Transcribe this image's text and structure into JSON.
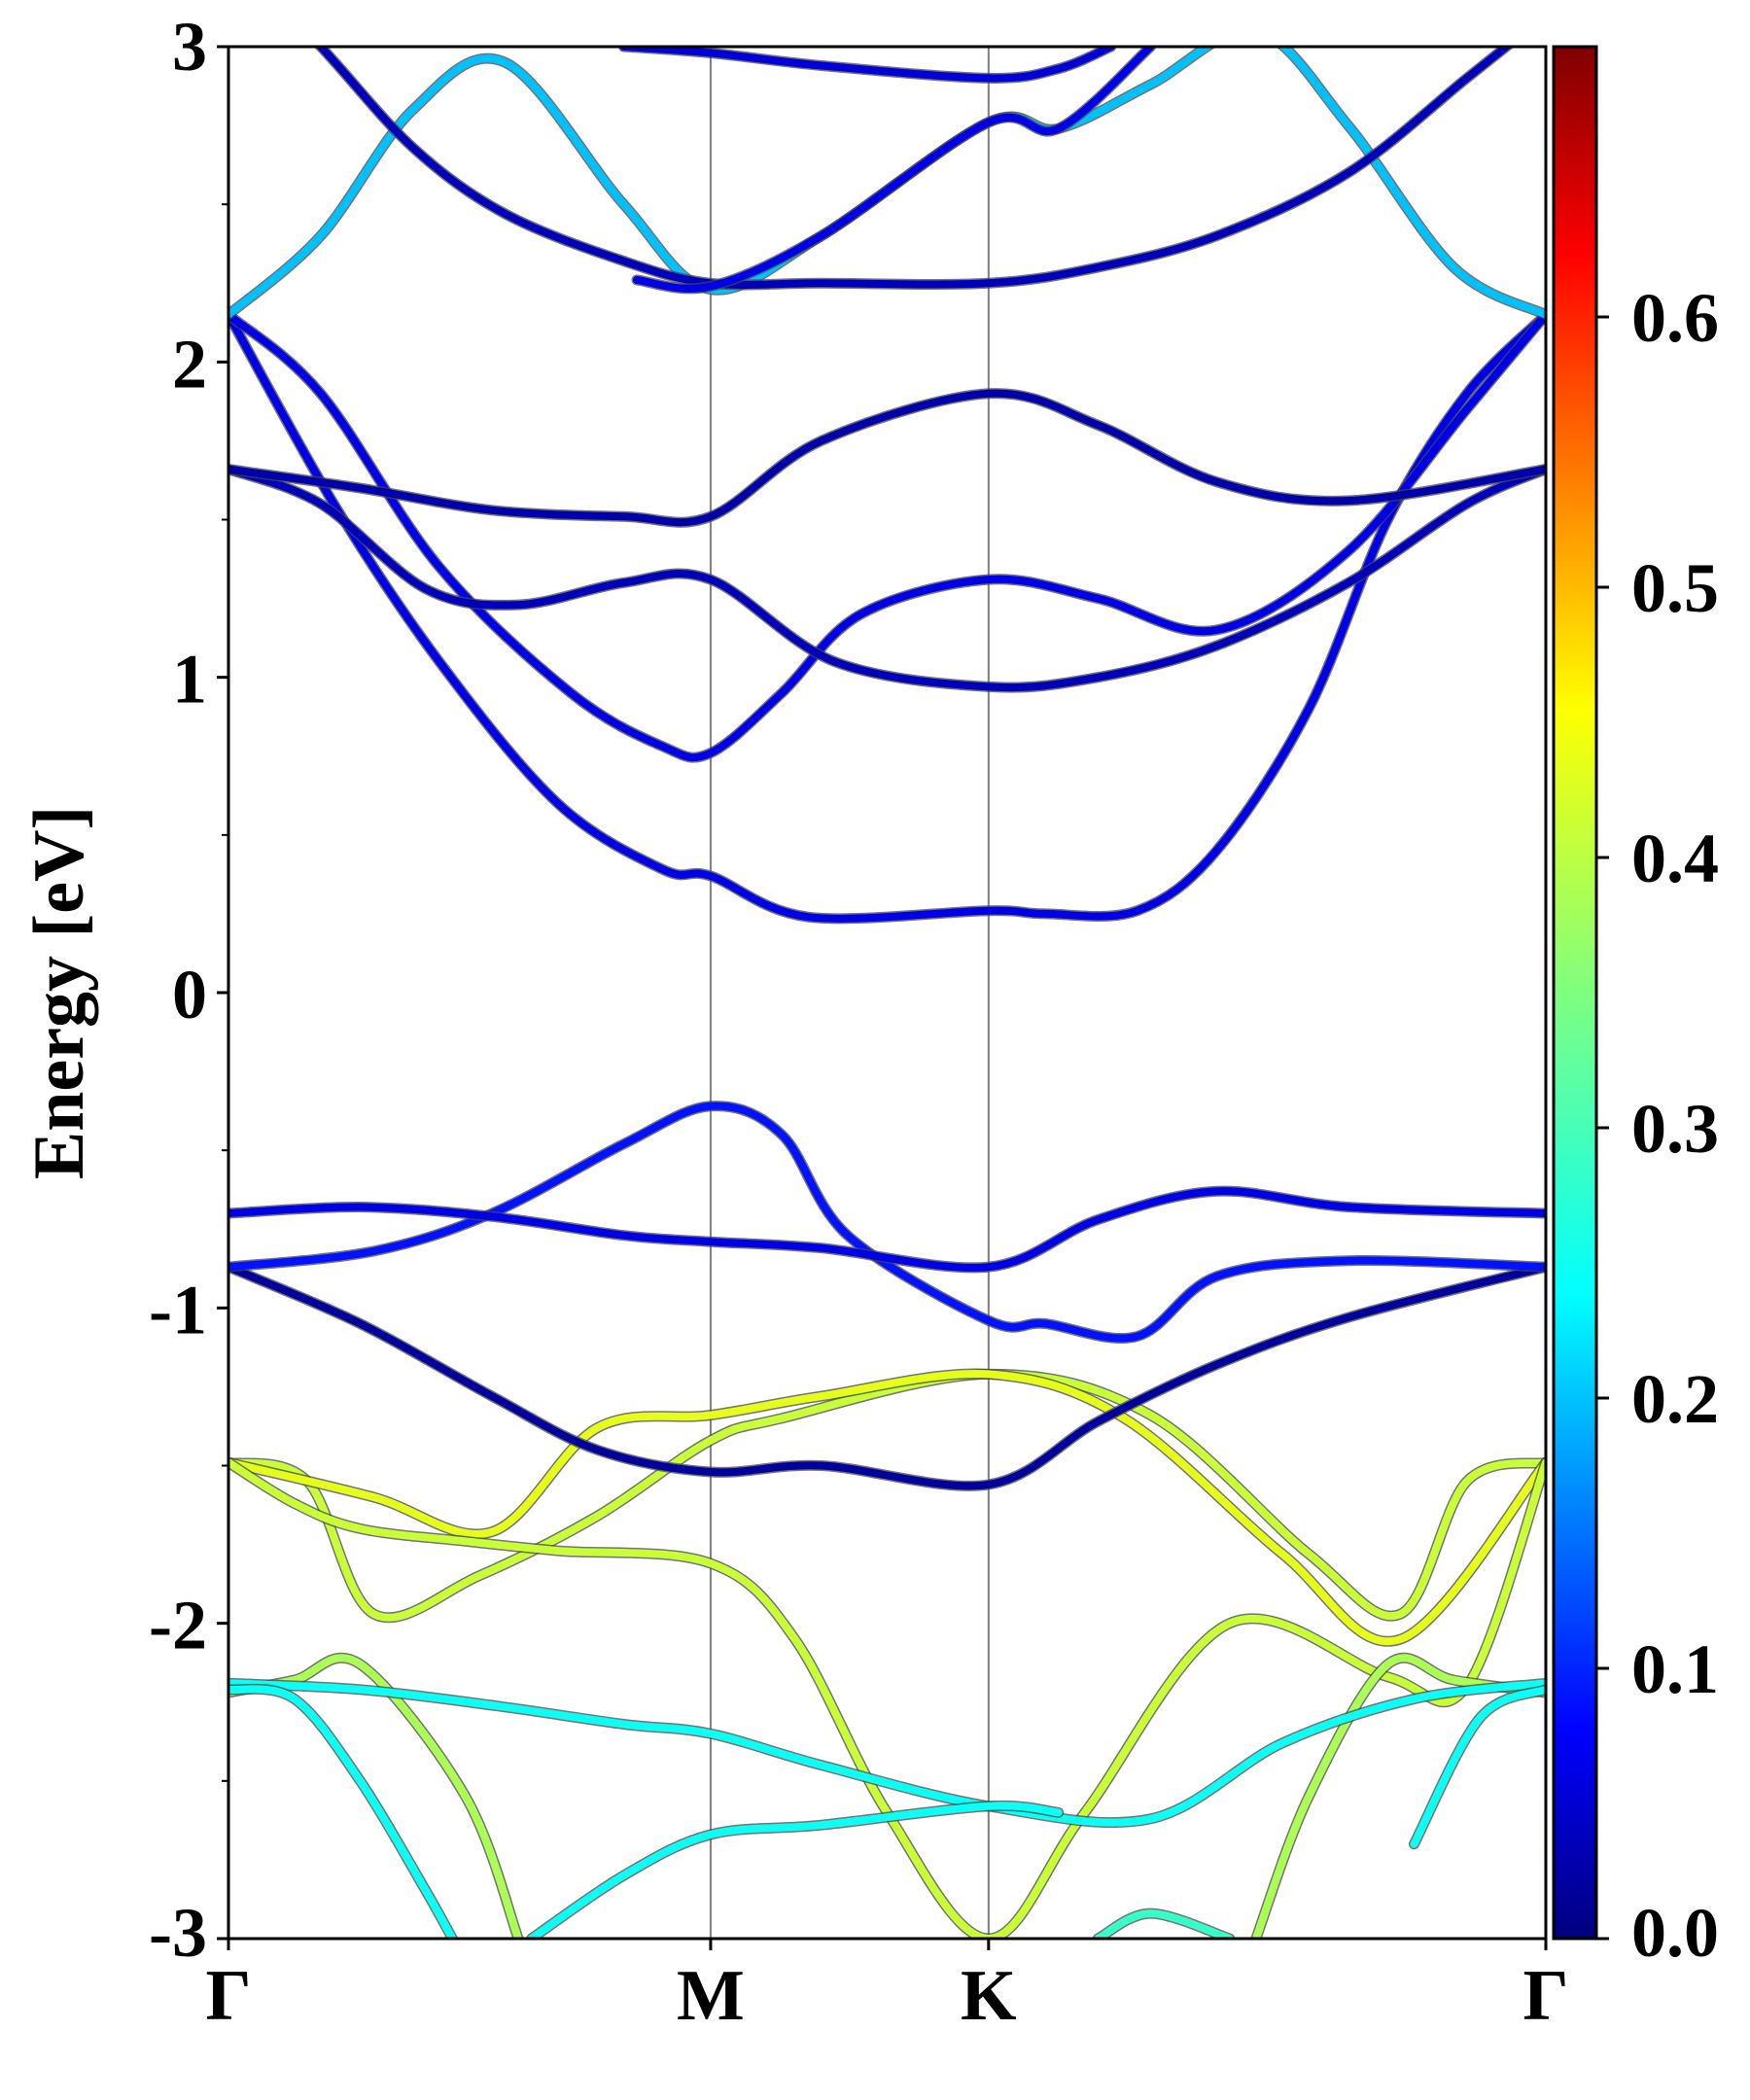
{
  "chart_data": {
    "type": "line",
    "subtype": "band-structure",
    "title": "",
    "ylabel": "Energy [eV]",
    "xlabel": "",
    "ylim": [
      -3,
      3
    ],
    "xlim": [
      0,
      1
    ],
    "y_ticks": [
      {
        "value": 3,
        "label": "3"
      },
      {
        "value": 2,
        "label": "2"
      },
      {
        "value": 1,
        "label": "1"
      },
      {
        "value": 0,
        "label": "0"
      },
      {
        "value": -1,
        "label": "-1"
      },
      {
        "value": -2,
        "label": "-2"
      },
      {
        "value": -3,
        "label": "-3"
      }
    ],
    "y_minor_ticks": [
      2.5,
      1.5,
      0.5,
      -0.5,
      -1.5,
      -2.5
    ],
    "high_symmetry_points": [
      {
        "label": "Γ",
        "x": 0.0
      },
      {
        "label": "M",
        "x": 0.366
      },
      {
        "label": "K",
        "x": 0.577
      },
      {
        "label": "Γ",
        "x": 1.0
      }
    ],
    "colorbar": {
      "colormap": "jet",
      "range": [
        0.0,
        0.7
      ],
      "ticks": [
        {
          "value": 0.0,
          "label": "0.0"
        },
        {
          "value": 0.1,
          "label": "0.1"
        },
        {
          "value": 0.2,
          "label": "0.2"
        },
        {
          "value": 0.3,
          "label": "0.3"
        },
        {
          "value": 0.4,
          "label": "0.4"
        },
        {
          "value": 0.5,
          "label": "0.5"
        },
        {
          "value": 0.6,
          "label": "0.6"
        }
      ]
    },
    "series": [
      {
        "name": "band-1",
        "weight": 0.4,
        "x": [
          0,
          0.06,
          0.11,
          0.19,
          0.28,
          0.366,
          0.42,
          0.577,
          0.7,
          0.82,
          0.89,
          0.94,
          1.0
        ],
        "y": [
          -1.49,
          -1.55,
          -1.97,
          -1.85,
          -1.66,
          -1.42,
          -1.35,
          -1.21,
          -1.34,
          -1.78,
          -1.97,
          -1.55,
          -1.49
        ]
      },
      {
        "name": "band-2",
        "weight": 0.42,
        "x": [
          0,
          0.11,
          0.2,
          0.28,
          0.366,
          0.45,
          0.577,
          0.68,
          0.8,
          0.89,
          1.0
        ],
        "y": [
          -1.49,
          -1.6,
          -1.71,
          -1.38,
          -1.34,
          -1.28,
          -1.21,
          -1.35,
          -1.78,
          -2.05,
          -1.49
        ]
      },
      {
        "name": "band-3",
        "weight": 0.4,
        "x": [
          0,
          0.05,
          0.1,
          0.18,
          0.25,
          0.366,
          0.43,
          0.5,
          0.577,
          0.65,
          0.76,
          0.88,
          0.94,
          1.0
        ],
        "y": [
          -1.49,
          -1.62,
          -1.7,
          -1.74,
          -1.77,
          -1.81,
          -2.05,
          -2.6,
          -3.0,
          -2.6,
          -2.0,
          -2.17,
          -2.2,
          -1.49
        ]
      },
      {
        "name": "band-4",
        "weight": 0.38,
        "x": [
          0,
          0.05,
          0.1,
          0.18,
          0.22
        ],
        "y": [
          -2.22,
          -2.18,
          -2.13,
          -2.55,
          -3.0
        ]
      },
      {
        "name": "band-5",
        "weight": 0.38,
        "x": [
          0.78,
          0.82,
          0.88,
          0.93,
          1.0
        ],
        "y": [
          -3.0,
          -2.55,
          -2.13,
          -2.18,
          -2.22
        ]
      },
      {
        "name": "band-6",
        "weight": 0.27,
        "x": [
          0,
          0.1,
          0.2,
          0.3,
          0.366,
          0.45,
          0.577,
          0.7,
          0.8,
          0.9,
          1.0
        ],
        "y": [
          -2.19,
          -2.21,
          -2.26,
          -2.32,
          -2.35,
          -2.45,
          -2.58,
          -2.62,
          -2.38,
          -2.24,
          -2.19
        ]
      },
      {
        "name": "band-7",
        "weight": 0.27,
        "x": [
          0,
          0.05,
          0.1,
          0.15,
          0.17
        ],
        "y": [
          -2.21,
          -2.24,
          -2.5,
          -2.85,
          -3.0
        ]
      },
      {
        "name": "band-8",
        "weight": 0.27,
        "x": [
          0.9,
          0.95,
          1.0
        ],
        "y": [
          -2.7,
          -2.3,
          -2.21
        ]
      },
      {
        "name": "band-9",
        "weight": 0.27,
        "x": [
          0.23,
          0.3,
          0.366,
          0.45,
          0.577,
          0.63
        ],
        "y": [
          -3.0,
          -2.8,
          -2.67,
          -2.64,
          -2.58,
          -2.6
        ]
      },
      {
        "name": "band-10",
        "weight": 0.3,
        "x": [
          0.66,
          0.7,
          0.76
        ],
        "y": [
          -3.0,
          -2.92,
          -3.0
        ]
      },
      {
        "name": "band-11",
        "weight": 0.02,
        "x": [
          0,
          0.1,
          0.2,
          0.28,
          0.366,
          0.45,
          0.577,
          0.66,
          0.75,
          0.85,
          1.0
        ],
        "y": [
          -0.87,
          -1.05,
          -1.28,
          -1.45,
          -1.52,
          -1.5,
          -1.56,
          -1.36,
          -1.18,
          -1.03,
          -0.87
        ]
      },
      {
        "name": "band-12",
        "weight": 0.1,
        "x": [
          0,
          0.11,
          0.2,
          0.3,
          0.366,
          0.42,
          0.47,
          0.577,
          0.62,
          0.69,
          0.75,
          0.85,
          1.0
        ],
        "y": [
          -0.87,
          -0.82,
          -0.7,
          -0.48,
          -0.36,
          -0.45,
          -0.77,
          -1.04,
          -1.05,
          -1.09,
          -0.9,
          -0.85,
          -0.87
        ]
      },
      {
        "name": "band-13",
        "weight": 0.07,
        "x": [
          0,
          0.1,
          0.2,
          0.3,
          0.366,
          0.45,
          0.577,
          0.66,
          0.75,
          0.85,
          1.0
        ],
        "y": [
          -0.7,
          -0.68,
          -0.71,
          -0.77,
          -0.79,
          -0.81,
          -0.87,
          -0.72,
          -0.63,
          -0.68,
          -0.7
        ]
      },
      {
        "name": "band-14",
        "weight": 0.07,
        "x": [
          0,
          0.08,
          0.16,
          0.25,
          0.33,
          0.366,
          0.44,
          0.577,
          0.62,
          0.69,
          0.75,
          0.82,
          0.88,
          0.94,
          1.0
        ],
        "y": [
          2.15,
          1.55,
          1.05,
          0.6,
          0.39,
          0.37,
          0.24,
          0.26,
          0.25,
          0.26,
          0.45,
          0.9,
          1.5,
          1.9,
          2.15
        ]
      },
      {
        "name": "band-15",
        "weight": 0.07,
        "x": [
          0,
          0.07,
          0.16,
          0.26,
          0.33,
          0.366,
          0.42,
          0.48,
          0.577,
          0.66,
          0.75,
          0.85,
          0.94,
          1.0
        ],
        "y": [
          2.15,
          1.9,
          1.35,
          0.95,
          0.78,
          0.76,
          0.95,
          1.2,
          1.31,
          1.25,
          1.15,
          1.4,
          1.85,
          2.15
        ]
      },
      {
        "name": "band-16",
        "weight": 0.04,
        "x": [
          0,
          0.07,
          0.15,
          0.22,
          0.3,
          0.366,
          0.46,
          0.577,
          0.66,
          0.75,
          0.85,
          0.94,
          1.0
        ],
        "y": [
          1.66,
          1.55,
          1.28,
          1.23,
          1.3,
          1.31,
          1.05,
          0.97,
          1.0,
          1.1,
          1.3,
          1.55,
          1.66
        ]
      },
      {
        "name": "band-17",
        "weight": 0.03,
        "x": [
          0,
          0.1,
          0.2,
          0.3,
          0.366,
          0.45,
          0.577,
          0.66,
          0.75,
          0.85,
          1.0
        ],
        "y": [
          1.66,
          1.6,
          1.53,
          1.51,
          1.51,
          1.75,
          1.9,
          1.8,
          1.62,
          1.56,
          1.66
        ]
      },
      {
        "name": "band-18",
        "weight": 0.22,
        "x": [
          0,
          0.07,
          0.14,
          0.21,
          0.3,
          0.366,
          0.45,
          0.577,
          0.63,
          0.7,
          0.78,
          0.85,
          0.93,
          1.0
        ],
        "y": [
          2.15,
          2.4,
          2.8,
          2.95,
          2.5,
          2.23,
          2.4,
          2.76,
          2.74,
          2.88,
          3.05,
          2.75,
          2.3,
          2.15
        ]
      },
      {
        "name": "band-19",
        "weight": 0.04,
        "x": [
          0,
          0.07,
          0.14,
          0.21,
          0.3,
          0.366,
          0.45,
          0.577,
          0.66,
          0.75,
          0.85,
          0.94,
          1.0
        ],
        "y": [
          3.3,
          3.0,
          2.68,
          2.47,
          2.32,
          2.25,
          2.25,
          2.25,
          2.3,
          2.4,
          2.6,
          2.9,
          3.1
        ]
      },
      {
        "name": "band-20",
        "weight": 0.07,
        "x": [
          0.31,
          0.366,
          0.45,
          0.577,
          0.63,
          0.7
        ],
        "y": [
          2.26,
          2.24,
          2.4,
          2.76,
          2.74,
          3.0
        ]
      },
      {
        "name": "band-21",
        "weight": 0.06,
        "x": [
          0.3,
          0.366,
          0.45,
          0.577,
          0.63,
          0.67
        ],
        "y": [
          3.0,
          2.98,
          2.94,
          2.9,
          2.93,
          3.0
        ]
      }
    ]
  }
}
